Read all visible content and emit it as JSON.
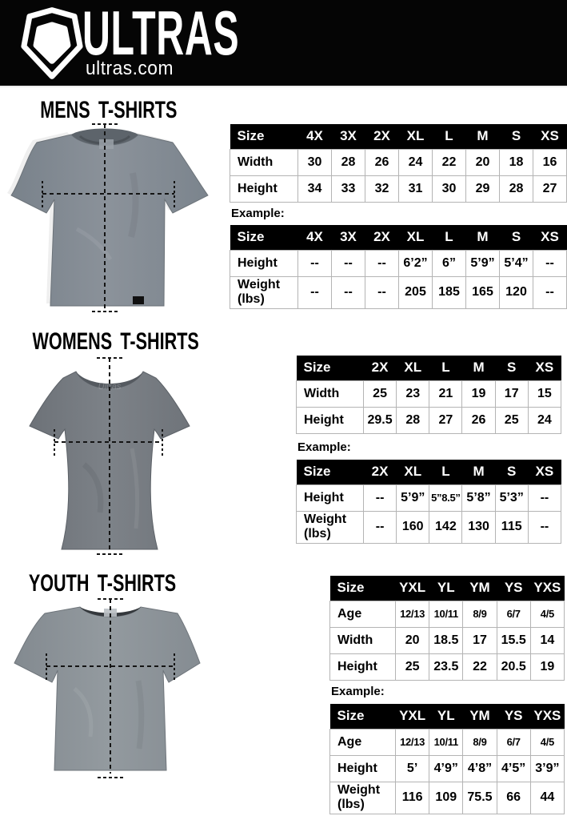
{
  "header": {
    "brand": "ULTRAS",
    "site": "ultras.com",
    "logo_icon": "pentagon-shield-icon"
  },
  "colors": {
    "header_bg": "#050505",
    "table_header_bg": "#000000",
    "table_border": "#b4b4b4",
    "shirt_gray_mens": "#828a92",
    "shirt_gray_womens": "#73787e",
    "shirt_gray_youth": "#8a9095"
  },
  "example_label": "Example:",
  "sections": [
    {
      "id": "mens",
      "title": "MENS T-SHIRTS",
      "size_table": {
        "columns": [
          "Size",
          "4X",
          "3X",
          "2X",
          "XL",
          "L",
          "M",
          "S",
          "XS"
        ],
        "rows": [
          {
            "label": "Width",
            "values": [
              "30",
              "28",
              "26",
              "24",
              "22",
              "20",
              "18",
              "16"
            ]
          },
          {
            "label": "Height",
            "values": [
              "34",
              "33",
              "32",
              "31",
              "30",
              "29",
              "28",
              "27"
            ]
          }
        ]
      },
      "example_table": {
        "columns": [
          "Size",
          "4X",
          "3X",
          "2X",
          "XL",
          "L",
          "M",
          "S",
          "XS"
        ],
        "rows": [
          {
            "label": "Height",
            "values": [
              "--",
              "--",
              "--",
              "6’2”",
              "6”",
              "5’9”",
              "5’4”",
              "--"
            ]
          },
          {
            "label": "Weight\n(lbs)",
            "tall": true,
            "values": [
              "--",
              "--",
              "--",
              "205",
              "185",
              "165",
              "120",
              "--"
            ]
          }
        ]
      }
    },
    {
      "id": "womens",
      "title": "WOMENS T-SHIRTS",
      "size_table": {
        "columns": [
          "Size",
          "2X",
          "XL",
          "L",
          "M",
          "S",
          "XS"
        ],
        "rows": [
          {
            "label": "Width",
            "values": [
              "25",
              "23",
              "21",
              "19",
              "17",
              "15"
            ]
          },
          {
            "label": "Height",
            "values": [
              "29.5",
              "28",
              "27",
              "26",
              "25",
              "24"
            ]
          }
        ]
      },
      "example_table": {
        "columns": [
          "Size",
          "2X",
          "XL",
          "L",
          "M",
          "S",
          "XS"
        ],
        "rows": [
          {
            "label": "Height",
            "values": [
              "--",
              "5’9”",
              {
                "text": "5”8.5”",
                "small": true
              },
              "5’8”",
              "5’3”",
              "--"
            ]
          },
          {
            "label": "Weight\n(lbs)",
            "tall": true,
            "values": [
              "--",
              "160",
              "142",
              "130",
              "115",
              "--"
            ]
          }
        ]
      }
    },
    {
      "id": "youth",
      "title": "YOUTH T-SHIRTS",
      "size_table": {
        "columns": [
          "Size",
          "YXL",
          "YL",
          "YM",
          "YS",
          "YXS"
        ],
        "rows": [
          {
            "label": "Age",
            "values": [
              {
                "text": "12/13",
                "small": true
              },
              {
                "text": "10/11",
                "small": true
              },
              {
                "text": "8/9",
                "small": true
              },
              {
                "text": "6/7",
                "small": true
              },
              {
                "text": "4/5",
                "small": true
              }
            ]
          },
          {
            "label": "Width",
            "values": [
              "20",
              "18.5",
              "17",
              "15.5",
              "14"
            ]
          },
          {
            "label": "Height",
            "values": [
              "25",
              "23.5",
              "22",
              "20.5",
              "19"
            ]
          }
        ]
      },
      "example_table": {
        "columns": [
          "Size",
          "YXL",
          "YL",
          "YM",
          "YS",
          "YXS"
        ],
        "rows": [
          {
            "label": "Age",
            "values": [
              {
                "text": "12/13",
                "small": true
              },
              {
                "text": "10/11",
                "small": true
              },
              {
                "text": "8/9",
                "small": true
              },
              {
                "text": "6/7",
                "small": true
              },
              {
                "text": "4/5",
                "small": true
              }
            ]
          },
          {
            "label": "Height",
            "values": [
              "5’",
              "4’9”",
              "4’8”",
              "4’5”",
              "3’9”"
            ]
          },
          {
            "label": "Weight\n(lbs)",
            "tall": true,
            "values": [
              "116",
              "109",
              "75.5",
              "66",
              "44"
            ]
          }
        ]
      }
    }
  ]
}
